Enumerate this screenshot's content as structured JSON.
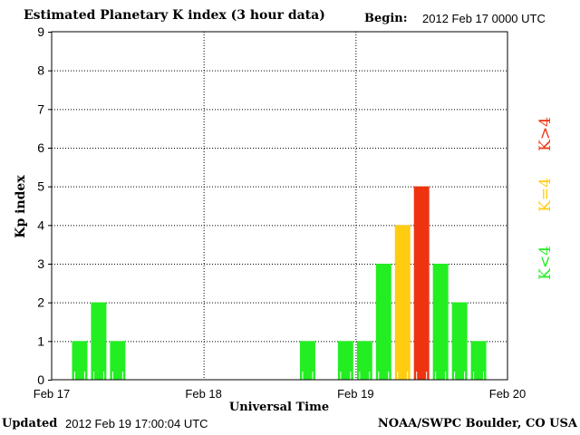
{
  "header": {
    "title": "Estimated Planetary K index (3 hour data)",
    "begin_label": "Begin:",
    "begin_value": "2012 Feb 17 0000 UTC"
  },
  "footer": {
    "updated_label": "Updated",
    "updated_value": "2012 Feb 19 17:00:04 UTC",
    "credit": "NOAA/SWPC Boulder, CO USA"
  },
  "chart_data": {
    "type": "bar",
    "title": "Estimated Planetary K index (3 hour data)",
    "xlabel": "Universal Time",
    "ylabel": "Kp index",
    "ylim": [
      0,
      9
    ],
    "yticks": [
      0,
      1,
      2,
      3,
      4,
      5,
      6,
      7,
      8,
      9
    ],
    "x_range": [
      "2012-02-17T00:00",
      "2012-02-20T00:00"
    ],
    "x_ticks": [
      {
        "day": 0,
        "label": "Feb 17"
      },
      {
        "day": 1,
        "label": "Feb 18"
      },
      {
        "day": 2,
        "label": "Feb 19"
      },
      {
        "day": 3,
        "label": "Feb 20"
      }
    ],
    "grid": true,
    "bars": [
      {
        "start": "2012-02-17T03:00",
        "value": 1
      },
      {
        "start": "2012-02-17T06:00",
        "value": 2
      },
      {
        "start": "2012-02-17T09:00",
        "value": 1
      },
      {
        "start": "2012-02-18T15:00",
        "value": 1
      },
      {
        "start": "2012-02-18T21:00",
        "value": 1
      },
      {
        "start": "2012-02-19T00:00",
        "value": 1
      },
      {
        "start": "2012-02-19T03:00",
        "value": 3
      },
      {
        "start": "2012-02-19T06:00",
        "value": 4
      },
      {
        "start": "2012-02-19T09:00",
        "value": 5
      },
      {
        "start": "2012-02-19T12:00",
        "value": 3
      },
      {
        "start": "2012-02-19T15:00",
        "value": 2
      },
      {
        "start": "2012-02-19T18:00",
        "value": 1
      }
    ],
    "legend": {
      "placement": "right",
      "entries": [
        {
          "label": "K<4",
          "color": "#22ee22"
        },
        {
          "label": "K=4",
          "color": "#ffcc11"
        },
        {
          "label": "K>4",
          "color": "#ee3311"
        }
      ]
    }
  }
}
